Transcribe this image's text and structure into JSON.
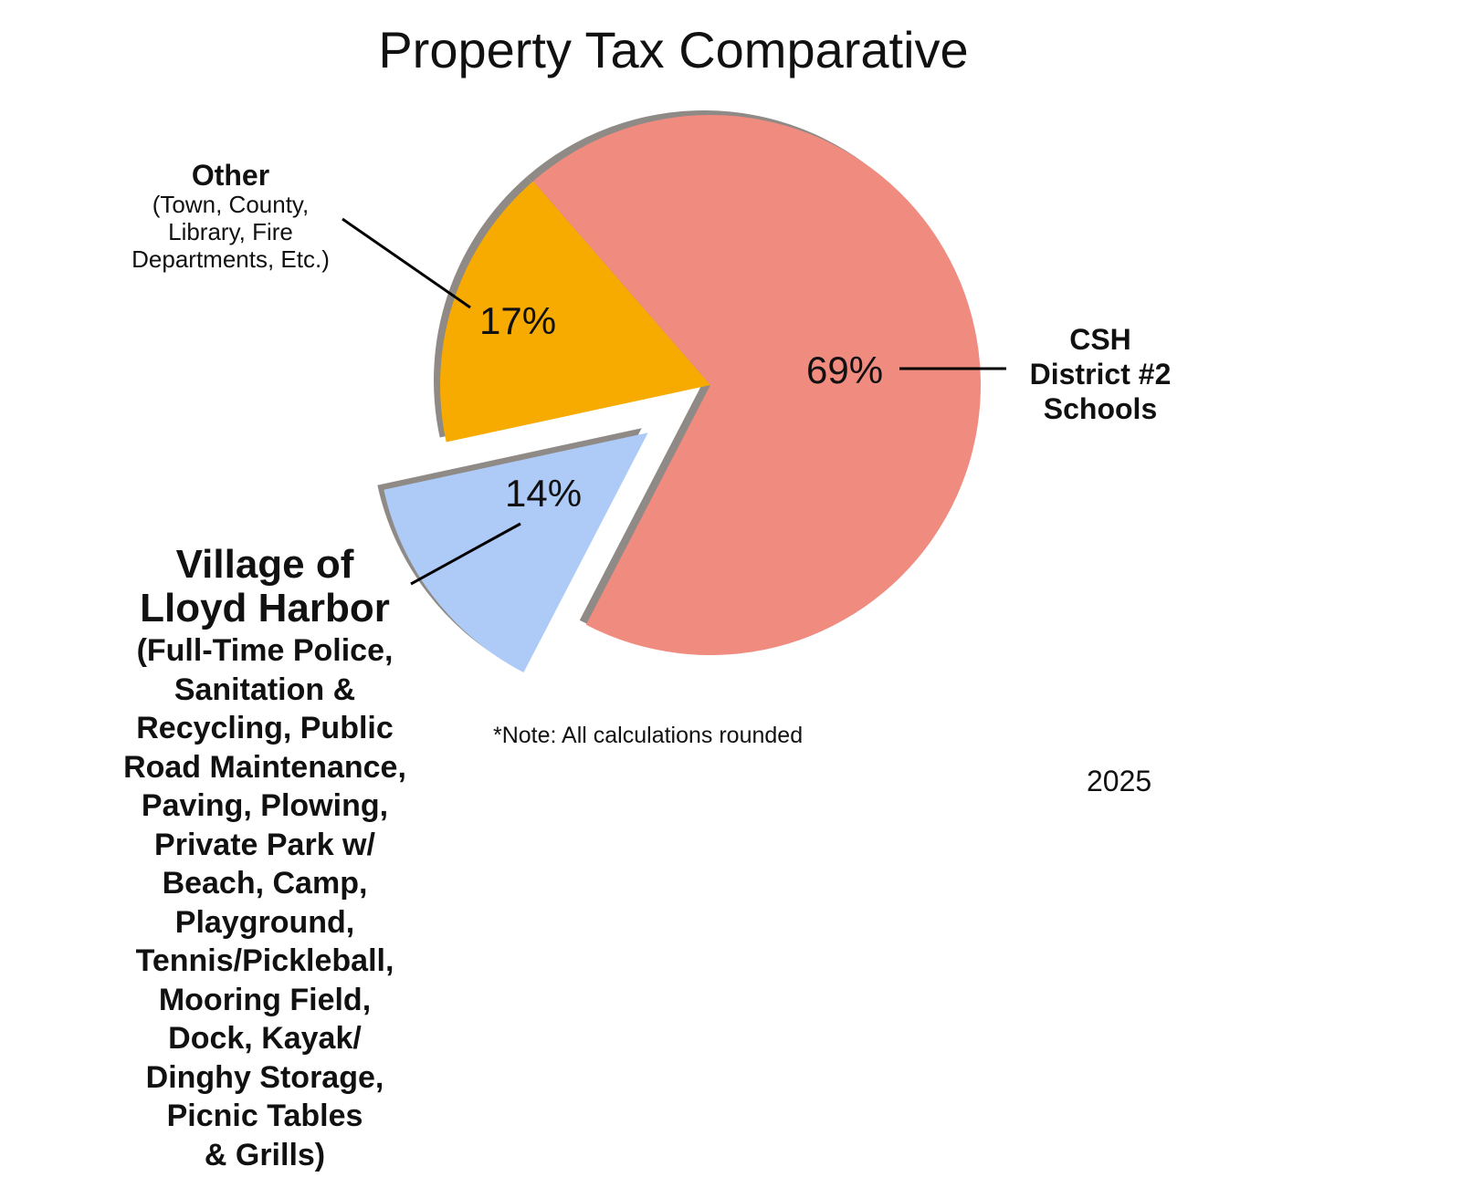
{
  "chart_data": {
    "type": "pie",
    "title": "Property Tax Comparative",
    "slices": [
      {
        "name": "CSH District #2 Schools",
        "label_lines": [
          "CSH",
          "District #2",
          "Schools"
        ],
        "value": 69,
        "value_label": "69%",
        "color": "#f08b80",
        "exploded": false
      },
      {
        "name": "Village of Lloyd Harbor",
        "heading_lines": [
          "Village of",
          "Lloyd Harbor"
        ],
        "detail_lines": [
          "(Full-Time Police,",
          "Sanitation &",
          "Recycling, Public",
          "Road Maintenance,",
          "Paving, Plowing,",
          "Private Park w/",
          "Beach, Camp,",
          "Playground,",
          "Tennis/Pickleball,",
          "Mooring Field,",
          "Dock, Kayak/",
          "Dinghy Storage,",
          "Picnic Tables",
          "& Grills)"
        ],
        "value": 14,
        "value_label": "14%",
        "color": "#aecbf7",
        "exploded": true
      },
      {
        "name": "Other",
        "heading_lines": [
          "Other"
        ],
        "detail_lines": [
          "(Town, County,",
          "Library, Fire",
          "Departments, Etc.)"
        ],
        "value": 17,
        "value_label": "17%",
        "color": "#f7ab00",
        "exploded": false
      }
    ],
    "note": "*Note: All calculations rounded",
    "year": "2025"
  }
}
